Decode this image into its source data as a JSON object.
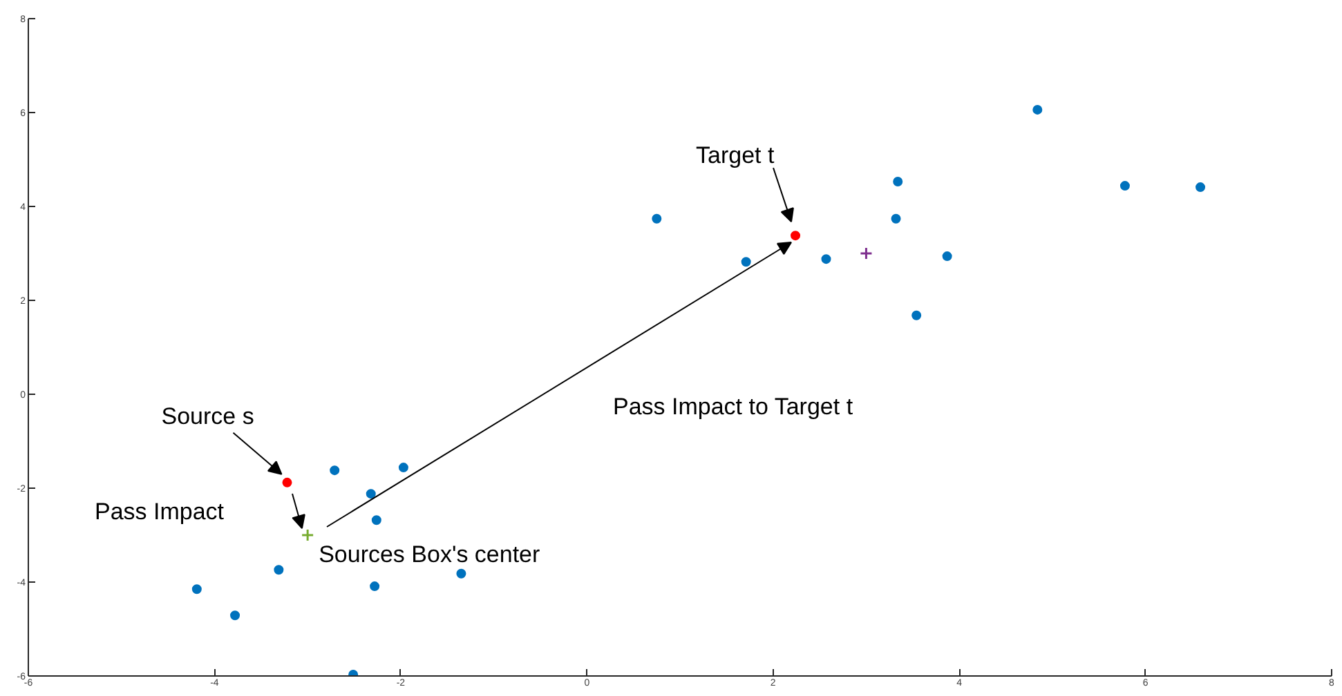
{
  "chart_data": {
    "type": "scatter",
    "xlim": [
      -6,
      8
    ],
    "ylim": [
      -6,
      8
    ],
    "xticks": [
      -6,
      -4,
      -2,
      0,
      2,
      4,
      6,
      8
    ],
    "yticks": [
      -6,
      -4,
      -2,
      0,
      2,
      4,
      6,
      8
    ],
    "grid": false,
    "series": [
      {
        "marker": "circle",
        "color": "#0072bd",
        "x": [
          -4.19,
          -3.78,
          -3.31,
          -2.71,
          -2.32,
          -2.26,
          -1.97,
          -2.28,
          -1.35,
          -2.51,
          0.75,
          1.71,
          2.57,
          3.34,
          3.32,
          3.54,
          3.87,
          4.84,
          5.78,
          6.59
        ],
        "values": [
          -4.15,
          -4.71,
          -3.74,
          -1.62,
          -2.12,
          -2.68,
          -1.56,
          -4.09,
          -3.82,
          -5.97,
          3.74,
          2.82,
          2.88,
          4.53,
          3.74,
          1.68,
          2.94,
          6.06,
          4.44,
          4.41
        ]
      },
      {
        "marker": "circle",
        "color": "#ff0000",
        "x": [
          -3.22,
          2.24
        ],
        "values": [
          -1.88,
          3.38
        ]
      },
      {
        "marker": "cross",
        "color": "#77ac30",
        "x": [
          -3.0
        ],
        "values": [
          -3.0
        ]
      },
      {
        "marker": "cross",
        "color": "#7e2f8e",
        "x": [
          3.0
        ],
        "values": [
          3.0
        ]
      }
    ],
    "annotations": [
      {
        "text": "Source s",
        "x": -3.22,
        "y": -1.88
      },
      {
        "text": "Target t",
        "x": 2.24,
        "y": 3.38
      },
      {
        "text": "Sources Box's center",
        "x": -3.0,
        "y": -3.0
      },
      "Pass Impact",
      "Pass Impact to Target t"
    ]
  }
}
